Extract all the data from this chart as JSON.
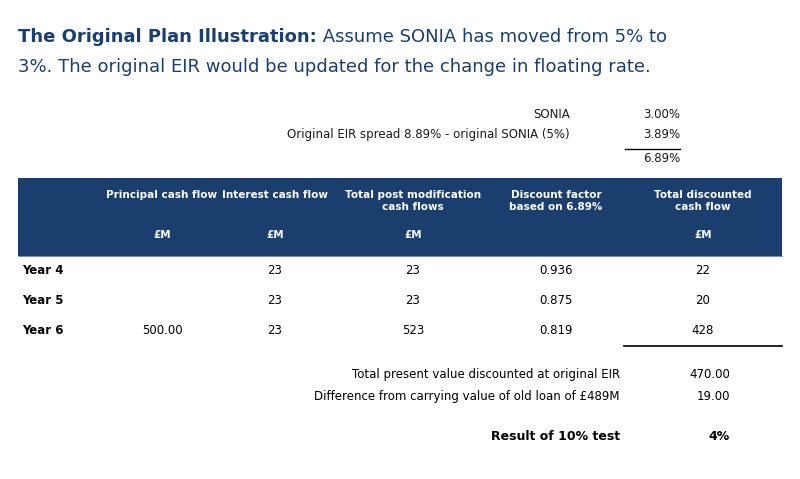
{
  "title_bold": "The Original Plan Illustration:",
  "title_normal_line1": " Assume SONIA has moved from 5% to",
  "title_normal_line2": "3%. The original EIR would be updated for the change in floating rate.",
  "title_color": "#1a3f6f",
  "title_fontsize": 13.0,
  "dark_blue": "#1a3f6f",
  "sonia_label": "SONIA",
  "sonia_value": "3.00%",
  "spread_label": "Original EIR spread 8.89% - original SONIA (5%)",
  "spread_value": "3.89%",
  "eir_value": "6.89%",
  "col_headers": [
    "Principal cash flow",
    "Interest cash flow",
    "Total post modification\ncash flows",
    "Discount factor\nbased on 6.89%",
    "Total discounted\ncash flow"
  ],
  "col_units": [
    "£M",
    "£M",
    "£M",
    "",
    "£M"
  ],
  "row_labels": [
    "Year 4",
    "Year 5",
    "Year 6"
  ],
  "table_data": [
    [
      "",
      "23",
      "23",
      "0.936",
      "22"
    ],
    [
      "",
      "23",
      "23",
      "0.875",
      "20"
    ],
    [
      "500.00",
      "23",
      "523",
      "0.819",
      "428"
    ]
  ],
  "summary_rows": [
    [
      "Total present value discounted at original EIR",
      "470.00"
    ],
    [
      "Difference from carrying value of old loan of £489M",
      "19.00"
    ]
  ],
  "result_label": "Result of 10% test",
  "result_value": "4%",
  "bg_color": "#ffffff"
}
